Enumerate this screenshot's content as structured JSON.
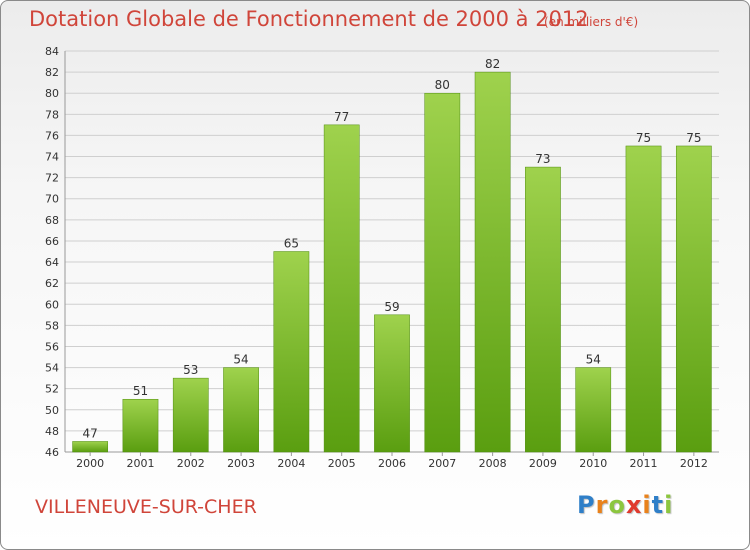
{
  "title": "Dotation Globale de Fonctionnement de 2000 à 2012",
  "subtitle": "(en milliers d'€)",
  "commune": "VILLENEUVE-SUR-CHER",
  "logo": {
    "letters": [
      "P",
      "r",
      "o",
      "x",
      "i",
      "t",
      "i"
    ],
    "colors": [
      "#2f7fc8",
      "#e9821c",
      "#8cc63f",
      "#e03a2e",
      "#e9821c",
      "#2f7fc8",
      "#8cc63f"
    ]
  },
  "colors": {
    "bar_light": "#9fd24d",
    "bar_dark": "#5a9e10",
    "grid": "#cfcfcf",
    "title": "#d0453a"
  },
  "chart_data": {
    "type": "bar",
    "categories": [
      "2000",
      "2001",
      "2002",
      "2003",
      "2004",
      "2005",
      "2006",
      "2007",
      "2008",
      "2009",
      "2010",
      "2011",
      "2012"
    ],
    "values": [
      47,
      51,
      53,
      54,
      65,
      77,
      59,
      80,
      82,
      73,
      54,
      75,
      75
    ],
    "data_labels": [
      "47",
      "51",
      "53",
      "54",
      "65",
      "77",
      "59",
      "80",
      "82",
      "73",
      "54",
      "75",
      "75"
    ],
    "ylim": [
      46,
      84
    ],
    "yticks": [
      46,
      48,
      50,
      52,
      54,
      56,
      58,
      60,
      62,
      64,
      66,
      68,
      70,
      72,
      74,
      76,
      78,
      80,
      82,
      84
    ],
    "grid": true
  }
}
